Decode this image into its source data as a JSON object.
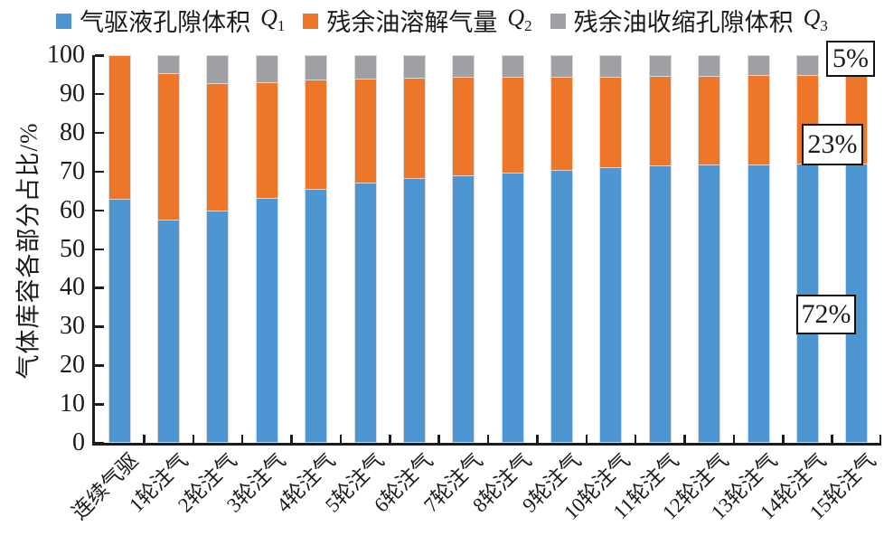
{
  "legend": {
    "items": [
      {
        "label": "气驱液孔隙体积",
        "symbol": "Q",
        "sub": "1",
        "color": "#4D96D2"
      },
      {
        "label": "残余油溶解气量",
        "symbol": "Q",
        "sub": "2",
        "color": "#EE7628"
      },
      {
        "label": "残余油收缩孔隙体积",
        "symbol": "Q",
        "sub": "3",
        "color": "#9EA0A3"
      }
    ]
  },
  "y_axis": {
    "title": "气体库容各部分占比/%",
    "ticks": [
      0,
      10,
      20,
      30,
      40,
      50,
      60,
      70,
      80,
      90,
      100
    ]
  },
  "annotations": [
    {
      "text": "5%",
      "series": "残余油收缩孔隙体积Q3",
      "category": "15轮注气"
    },
    {
      "text": "23%",
      "series": "残余油溶解气量Q2",
      "category": "15轮注气"
    },
    {
      "text": "72%",
      "series": "气驱液孔隙体积Q1",
      "category": "15轮注气"
    }
  ],
  "chart_data": {
    "type": "bar",
    "stacked": true,
    "title": "",
    "xlabel": "",
    "ylabel": "气体库容各部分占比/%",
    "ylim": [
      0,
      100
    ],
    "grid": false,
    "legend_position": "top",
    "categories": [
      "连续气驱",
      "1轮注气",
      "2轮注气",
      "3轮注气",
      "4轮注气",
      "5轮注气",
      "6轮注气",
      "7轮注气",
      "8轮注气",
      "9轮注气",
      "10轮注气",
      "11轮注气",
      "12轮注气",
      "13轮注气",
      "14轮注气",
      "15轮注气"
    ],
    "series": [
      {
        "name": "气驱液孔隙体积Q1",
        "color": "#4D96D2",
        "values": [
          63.0,
          57.5,
          60.0,
          63.2,
          65.5,
          67.2,
          68.3,
          69.0,
          69.8,
          70.5,
          71.2,
          71.5,
          71.8,
          71.9,
          72.0,
          72.0
        ]
      },
      {
        "name": "残余油溶解气量Q2",
        "color": "#EE7628",
        "values": [
          37.0,
          37.8,
          32.7,
          29.9,
          28.2,
          26.7,
          25.8,
          25.3,
          24.6,
          24.0,
          23.3,
          23.1,
          22.9,
          22.9,
          22.9,
          23.0
        ]
      },
      {
        "name": "残余油收缩孔隙体积Q3",
        "color": "#9EA0A3",
        "values": [
          0.0,
          4.7,
          7.3,
          6.9,
          6.3,
          6.1,
          5.9,
          5.7,
          5.6,
          5.5,
          5.5,
          5.4,
          5.3,
          5.2,
          5.1,
          5.0
        ]
      }
    ]
  }
}
